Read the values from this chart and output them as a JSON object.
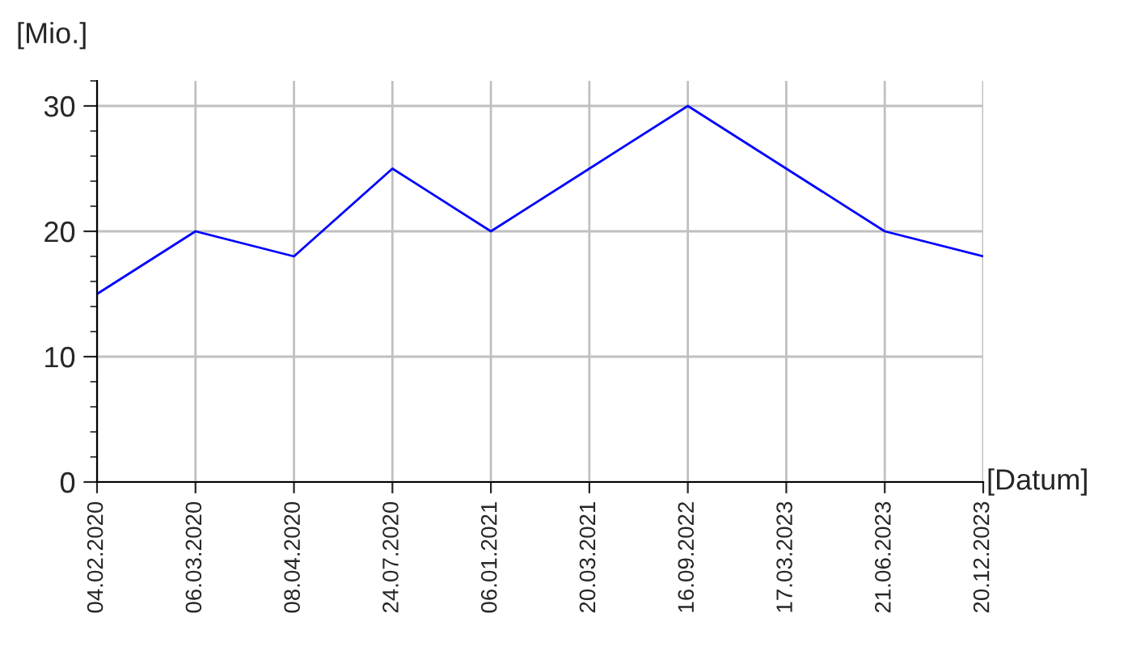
{
  "chart_data": {
    "type": "line",
    "categories": [
      "04.02.2020",
      "06.03.2020",
      "08.04.2020",
      "24.07.2020",
      "06.01.2021",
      "20.03.2021",
      "16.09.2022",
      "17.03.2023",
      "21.06.2023",
      "20.12.2023"
    ],
    "series": [
      {
        "color": "#0000ff",
        "values": [
          15,
          20,
          18,
          25,
          20,
          25,
          30,
          25,
          20,
          18
        ]
      }
    ],
    "xlabel": "[Datum]",
    "ylabel": "[Mio.]",
    "ylim": [
      0,
      32
    ],
    "yticks": [
      0,
      10,
      20,
      30
    ],
    "grid": true,
    "marker": "none",
    "line_style": "solid"
  }
}
